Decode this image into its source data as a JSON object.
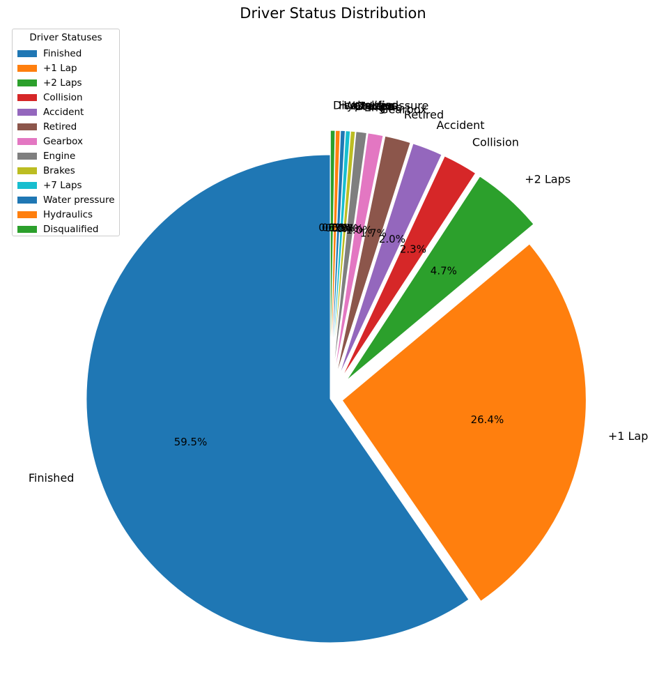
{
  "chart_data": {
    "type": "pie",
    "title": "Driver Status Distribution",
    "legend_title": "Driver Statuses",
    "legend_position": "top-left",
    "start_angle_deg": 90,
    "direction": "counterclockwise",
    "slices": [
      {
        "label": "Finished",
        "value": 59.5,
        "pct_label": "59.5%",
        "color": "#1f77b4",
        "explode": 0
      },
      {
        "label": "+1 Lap",
        "value": 26.4,
        "pct_label": "26.4%",
        "color": "#ff7f0e",
        "explode": 0.05
      },
      {
        "label": "+2 Laps",
        "value": 4.7,
        "pct_label": "4.7%",
        "color": "#2ca02c",
        "explode": 0.1
      },
      {
        "label": "Collision",
        "value": 2.3,
        "pct_label": "2.3%",
        "color": "#d62728",
        "explode": 0.1
      },
      {
        "label": "Accident",
        "value": 2.0,
        "pct_label": "2.0%",
        "color": "#9467bd",
        "explode": 0.1
      },
      {
        "label": "Retired",
        "value": 1.7,
        "pct_label": "1.7%",
        "color": "#8c564b",
        "explode": 0.1
      },
      {
        "label": "Gearbox",
        "value": 1.0,
        "pct_label": "1.0%",
        "color": "#e377c2",
        "explode": 0.1
      },
      {
        "label": "Engine",
        "value": 0.7,
        "pct_label": "0.7%",
        "color": "#7f7f7f",
        "explode": 0.1
      },
      {
        "label": "Brakes",
        "value": 0.3,
        "pct_label": "0.3%",
        "color": "#bcbd22",
        "explode": 0.1
      },
      {
        "label": "+7 Laps",
        "value": 0.3,
        "pct_label": "0.3%",
        "color": "#17becf",
        "explode": 0.1
      },
      {
        "label": "Water pressure",
        "value": 0.3,
        "pct_label": "0.3%",
        "color": "#1f77b4",
        "explode": 0.1
      },
      {
        "label": "Hydraulics",
        "value": 0.3,
        "pct_label": "0.3%",
        "color": "#ff7f0e",
        "explode": 0.1
      },
      {
        "label": "Disqualified",
        "value": 0.3,
        "pct_label": "0.3%",
        "color": "#2ca02c",
        "explode": 0.1
      }
    ]
  }
}
